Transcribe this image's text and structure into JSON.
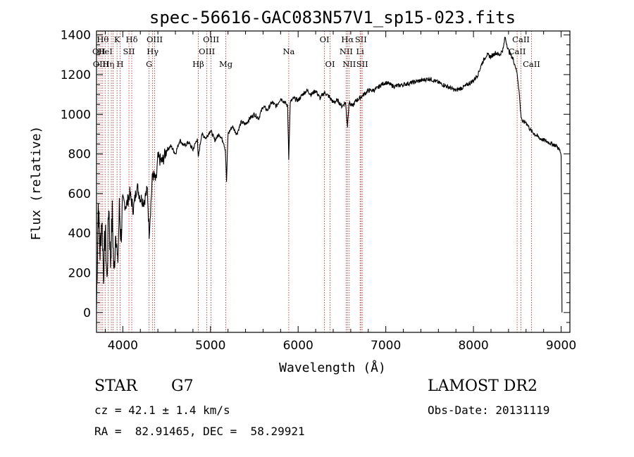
{
  "chart_data": {
    "type": "line",
    "title": "spec-56616-GAC083N57V1_sp15-023.fits",
    "xlabel": "Wavelength (Å)",
    "ylabel": "Flux (relative)",
    "xlim": [
      3700,
      9100
    ],
    "ylim": [
      -100,
      1420
    ],
    "xticks": [
      4000,
      5000,
      6000,
      7000,
      8000,
      9000
    ],
    "yticks": [
      0,
      200,
      400,
      600,
      800,
      1000,
      1200,
      1400
    ],
    "grid": false,
    "series": [
      {
        "name": "flux",
        "x": [
          3700,
          3720,
          3740,
          3760,
          3780,
          3800,
          3820,
          3840,
          3860,
          3880,
          3900,
          3920,
          3940,
          3960,
          3980,
          4000,
          4040,
          4080,
          4120,
          4160,
          4200,
          4240,
          4280,
          4300,
          4340,
          4380,
          4400,
          4450,
          4500,
          4550,
          4600,
          4650,
          4700,
          4750,
          4800,
          4850,
          4860,
          4900,
          4950,
          5000,
          5050,
          5100,
          5150,
          5170,
          5183,
          5200,
          5250,
          5300,
          5350,
          5400,
          5450,
          5500,
          5550,
          5600,
          5650,
          5700,
          5750,
          5800,
          5850,
          5880,
          5893,
          5910,
          5950,
          6000,
          6050,
          6100,
          6150,
          6200,
          6250,
          6300,
          6350,
          6400,
          6450,
          6500,
          6540,
          6563,
          6580,
          6620,
          6660,
          6700,
          6750,
          6800,
          6850,
          6900,
          6950,
          7000,
          7100,
          7200,
          7300,
          7400,
          7500,
          7600,
          7700,
          7800,
          7900,
          8000,
          8050,
          8100,
          8150,
          8200,
          8250,
          8300,
          8340,
          8360,
          8400,
          8450,
          8480,
          8500,
          8520,
          8540,
          8560,
          8600,
          8650,
          8700,
          8750,
          8800,
          8850,
          8900,
          8950,
          8980,
          9000,
          9010
        ],
        "y": [
          20,
          550,
          300,
          480,
          200,
          420,
          150,
          560,
          250,
          500,
          180,
          450,
          220,
          520,
          380,
          560,
          540,
          600,
          520,
          640,
          580,
          560,
          620,
          400,
          700,
          660,
          780,
          760,
          820,
          840,
          800,
          870,
          840,
          860,
          820,
          880,
          780,
          900,
          880,
          920,
          870,
          900,
          860,
          820,
          660,
          900,
          940,
          900,
          960,
          950,
          980,
          1000,
          980,
          1040,
          1020,
          1060,
          1040,
          1080,
          1060,
          1040,
          780,
          1060,
          1080,
          1070,
          1100,
          1120,
          1100,
          1120,
          1080,
          1110,
          1090,
          1060,
          1070,
          1040,
          1060,
          940,
          1060,
          1040,
          1070,
          1080,
          1100,
          1120,
          1120,
          1130,
          1150,
          1160,
          1140,
          1150,
          1160,
          1170,
          1180,
          1160,
          1140,
          1120,
          1140,
          1170,
          1200,
          1260,
          1300,
          1290,
          1310,
          1300,
          1330,
          1390,
          1320,
          1280,
          1240,
          1200,
          1120,
          1000,
          960,
          960,
          920,
          900,
          880,
          870,
          860,
          850,
          840,
          820,
          800,
          0
        ]
      }
    ],
    "line_markers": [
      {
        "wl": 3726,
        "label": "OII",
        "row": 1
      },
      {
        "wl": 3750,
        "label": "OIII",
        "row": 2
      },
      {
        "wl": 3771,
        "label": "Hθ",
        "row": 0
      },
      {
        "wl": 3798,
        "label": "HeI",
        "row": 1
      },
      {
        "wl": 3835,
        "label": "Hη",
        "row": 2
      },
      {
        "wl": 3869,
        "label": "",
        "row": 0
      },
      {
        "wl": 3889,
        "label": "",
        "row": 0
      },
      {
        "wl": 3934,
        "label": "K",
        "row": 0
      },
      {
        "wl": 3969,
        "label": "H",
        "row": 2
      },
      {
        "wl": 4070,
        "label": "SII",
        "row": 1
      },
      {
        "wl": 4102,
        "label": "Hδ",
        "row": 0
      },
      {
        "wl": 4300,
        "label": "G",
        "row": 2
      },
      {
        "wl": 4340,
        "label": "Hγ",
        "row": 1
      },
      {
        "wl": 4363,
        "label": "OIII",
        "row": 0
      },
      {
        "wl": 4861,
        "label": "Hβ",
        "row": 2
      },
      {
        "wl": 4959,
        "label": "OIII",
        "row": 1
      },
      {
        "wl": 5007,
        "label": "OIII",
        "row": 0
      },
      {
        "wl": 5175,
        "label": "Mg",
        "row": 2
      },
      {
        "wl": 5893,
        "label": "Na",
        "row": 1
      },
      {
        "wl": 6300,
        "label": "OI",
        "row": 0
      },
      {
        "wl": 6364,
        "label": "OI",
        "row": 2
      },
      {
        "wl": 6548,
        "label": "NII",
        "row": 1
      },
      {
        "wl": 6563,
        "label": "Hα",
        "row": 0
      },
      {
        "wl": 6583,
        "label": "NII",
        "row": 2
      },
      {
        "wl": 6707,
        "label": "Li",
        "row": 1
      },
      {
        "wl": 6716,
        "label": "SII",
        "row": 0
      },
      {
        "wl": 6731,
        "label": "SII",
        "row": 2
      },
      {
        "wl": 8498,
        "label": "CaII",
        "row": 1
      },
      {
        "wl": 8542,
        "label": "CaII",
        "row": 0
      },
      {
        "wl": 8662,
        "label": "CaII",
        "row": 2
      }
    ]
  },
  "info": {
    "object_class": "STAR",
    "subclass": "G7",
    "survey": "LAMOST DR2",
    "redshift": "cz = 42.1 ± 1.4 km/s",
    "obs_date": "Obs-Date: 20131119",
    "coords": "RA =  82.91465, DEC =  58.29921"
  },
  "colors": {
    "spectrum": "#000000",
    "marker_line": "#b22222",
    "axes": "#000000"
  }
}
